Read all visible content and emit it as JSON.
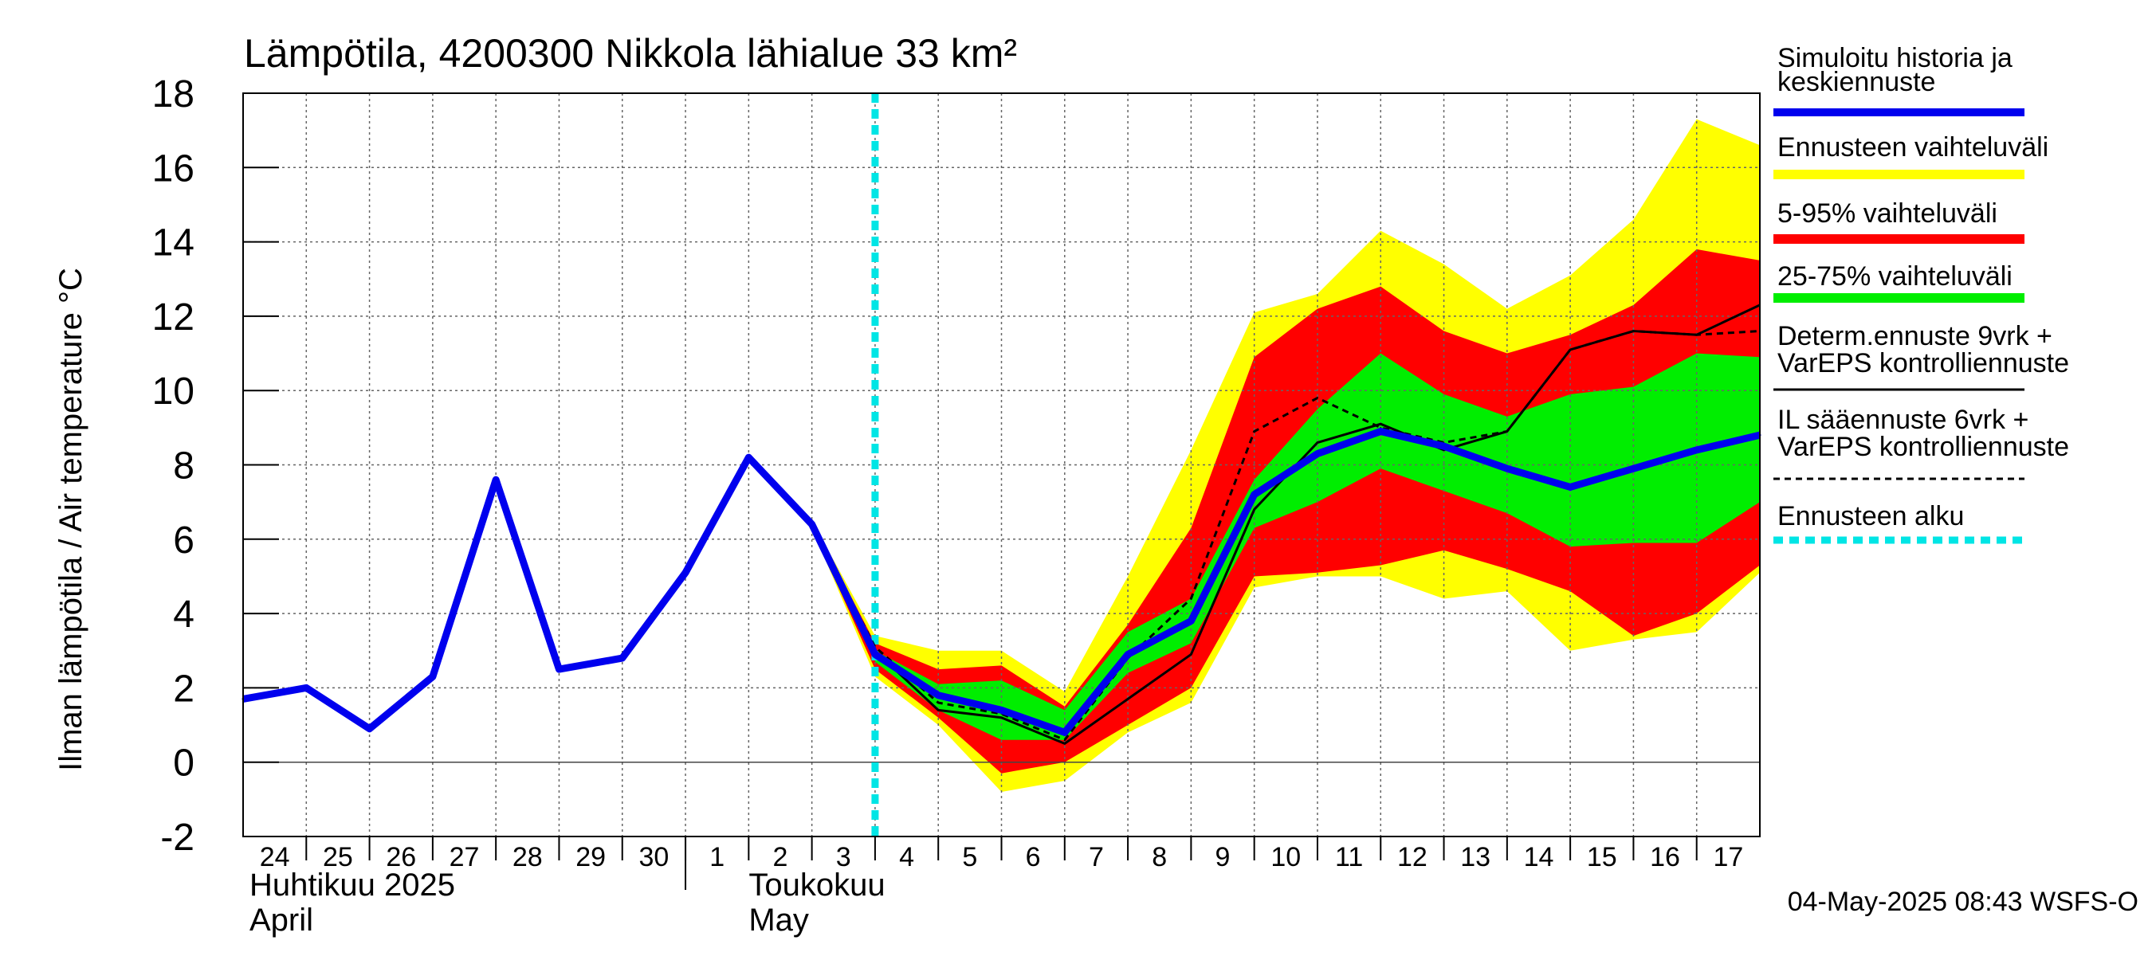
{
  "chart_data": {
    "type": "line",
    "title": "Lämpötila, 4200300 Nikkola lähialue 33 km²",
    "ylabel": "Ilman lämpötila / Air temperature    °C",
    "ylim": [
      -2,
      18
    ],
    "yticks": [
      "-2",
      "0",
      "2",
      "4",
      "6",
      "8",
      "10",
      "12",
      "14",
      "16",
      "18"
    ],
    "xlim": [
      0,
      24
    ],
    "x_tick_labels": [
      "24",
      "25",
      "26",
      "27",
      "28",
      "29",
      "30",
      "1",
      "2",
      "3",
      "4",
      "5",
      "6",
      "7",
      "8",
      "9",
      "10",
      "11",
      "12",
      "13",
      "14",
      "15",
      "16",
      "17"
    ],
    "month_labels": [
      {
        "fi": "Huhtikuu  2025",
        "en": "April"
      },
      {
        "fi": "Toukokuu",
        "en": "May"
      }
    ],
    "forecast_start_x": 10,
    "legend": [
      {
        "label_lines": [
          "Simuloitu historia ja",
          "keskiennuste"
        ],
        "color": "#0000ee",
        "style": "thick"
      },
      {
        "label_lines": [
          "Ennusteen vaihteluväli"
        ],
        "color": "#ffff00",
        "style": "band"
      },
      {
        "label_lines": [
          "5-95% vaihteluväli"
        ],
        "color": "#ff0000",
        "style": "band"
      },
      {
        "label_lines": [
          "25-75% vaihteluväli"
        ],
        "color": "#00ee00",
        "style": "band"
      },
      {
        "label_lines": [
          "Determ.ennuste 9vrk  +",
          "VarEPS kontrolliennuste"
        ],
        "color": "#000000",
        "style": "solid"
      },
      {
        "label_lines": [
          "IL sääennuste 6vrk  +",
          "  VarEPS kontrolliennuste"
        ],
        "color": "#000000",
        "style": "dashed"
      },
      {
        "label_lines": [
          "Ennusteen alku"
        ],
        "color": "#00e5e5",
        "style": "dotted"
      }
    ],
    "series": [
      {
        "name": "Simuloitu historia ja keskiennuste",
        "color": "#0000ee",
        "x": [
          0,
          1,
          2,
          3,
          4,
          5,
          6,
          7,
          8,
          9,
          10,
          11,
          12,
          13,
          14,
          15,
          16,
          17,
          18,
          19,
          20,
          21,
          22,
          23,
          24
        ],
        "y": [
          1.7,
          2.0,
          0.9,
          2.3,
          7.6,
          2.5,
          2.8,
          5.1,
          8.2,
          6.4,
          2.9,
          1.8,
          1.4,
          0.8,
          2.9,
          3.8,
          7.2,
          8.3,
          8.9,
          8.5,
          7.9,
          7.4,
          7.9,
          8.4,
          8.8
        ]
      },
      {
        "name": "Determ.ennuste 9vrk + VarEPS kontrolliennuste",
        "color": "#000000",
        "style": "solid",
        "x": [
          8,
          9,
          10,
          11,
          12,
          13,
          14,
          15,
          16,
          17,
          18,
          19,
          20,
          21,
          22,
          23,
          24
        ],
        "y": [
          8.2,
          6.4,
          3.0,
          1.4,
          1.2,
          0.5,
          1.7,
          2.9,
          6.8,
          8.6,
          9.1,
          8.4,
          8.9,
          11.1,
          11.6,
          11.5,
          12.3
        ]
      },
      {
        "name": "IL sääennuste 6vrk + VarEPS kontrolliennuste",
        "color": "#000000",
        "style": "dashed",
        "x": [
          8,
          9,
          10,
          11,
          12,
          13,
          14,
          15,
          16,
          17,
          18,
          19,
          20,
          21,
          22,
          23,
          24
        ],
        "y": [
          8.2,
          6.4,
          3.1,
          1.6,
          1.3,
          0.6,
          2.8,
          4.4,
          8.9,
          9.8,
          9.0,
          8.6,
          8.9,
          11.1,
          11.6,
          11.5,
          11.6
        ]
      }
    ],
    "bands": [
      {
        "name": "Ennusteen vaihteluväli",
        "color": "#ffff00",
        "x": [
          9,
          10,
          11,
          12,
          13,
          14,
          15,
          16,
          17,
          18,
          19,
          20,
          21,
          22,
          23,
          24
        ],
        "lower": [
          6.3,
          2.3,
          1.0,
          -0.8,
          -0.5,
          0.8,
          1.6,
          4.7,
          5.0,
          5.0,
          4.4,
          4.6,
          3.0,
          3.3,
          3.5,
          5.1
        ],
        "upper": [
          6.5,
          3.4,
          3.0,
          3.0,
          1.9,
          5.0,
          8.4,
          12.1,
          12.6,
          14.3,
          13.4,
          12.2,
          13.1,
          14.6,
          17.3,
          16.6
        ]
      },
      {
        "name": "5-95% vaihteluväli",
        "color": "#ff0000",
        "x": [
          9,
          10,
          11,
          12,
          13,
          14,
          15,
          16,
          17,
          18,
          19,
          20,
          21,
          22,
          23,
          24
        ],
        "lower": [
          6.3,
          2.5,
          1.2,
          -0.3,
          0.0,
          1.0,
          2.0,
          5.0,
          5.1,
          5.3,
          5.7,
          5.2,
          4.6,
          3.4,
          4.0,
          5.3
        ],
        "upper": [
          6.5,
          3.2,
          2.5,
          2.6,
          1.5,
          3.7,
          6.3,
          10.9,
          12.2,
          12.8,
          11.6,
          11.0,
          11.5,
          12.3,
          13.8,
          13.5
        ]
      },
      {
        "name": "25-75% vaihteluväli",
        "color": "#00ee00",
        "x": [
          10,
          11,
          12,
          13,
          14,
          15,
          16,
          17,
          18,
          19,
          20,
          21,
          22,
          23,
          24
        ],
        "lower": [
          2.7,
          1.4,
          0.6,
          0.6,
          2.4,
          3.2,
          6.3,
          7.0,
          7.9,
          7.3,
          6.7,
          5.8,
          5.9,
          5.9,
          7.0
        ],
        "upper": [
          3.0,
          2.1,
          2.2,
          1.4,
          3.5,
          4.4,
          7.6,
          9.5,
          11.0,
          9.9,
          9.3,
          9.9,
          10.1,
          11.0,
          10.9
        ]
      }
    ]
  },
  "timestamp": "04-May-2025 08:43 WSFS-O"
}
